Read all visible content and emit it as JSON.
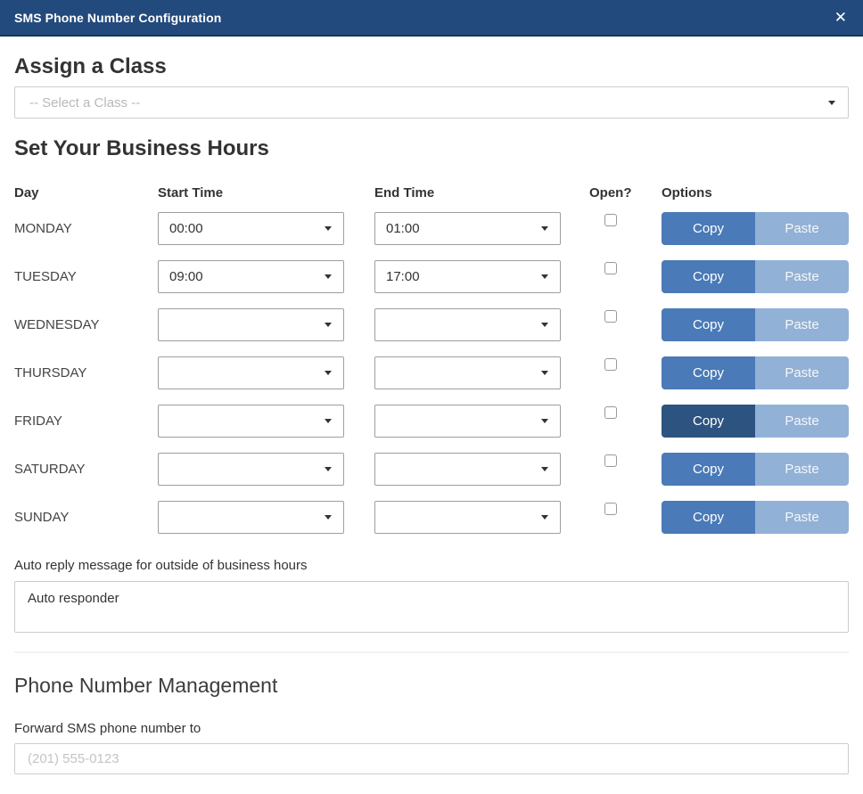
{
  "header": {
    "title": "SMS Phone Number Configuration",
    "close_icon": "✕"
  },
  "assign_class": {
    "heading": "Assign a Class",
    "select_placeholder": "-- Select a Class --"
  },
  "business_hours": {
    "heading": "Set Your Business Hours",
    "columns": {
      "day": "Day",
      "start": "Start Time",
      "end": "End Time",
      "open": "Open?",
      "options": "Options"
    },
    "copy_label": "Copy",
    "paste_label": "Paste",
    "rows": [
      {
        "day": "MONDAY",
        "start": "00:00",
        "end": "01:00",
        "open": false,
        "copy_active": false
      },
      {
        "day": "TUESDAY",
        "start": "09:00",
        "end": "17:00",
        "open": false,
        "copy_active": false
      },
      {
        "day": "WEDNESDAY",
        "start": "",
        "end": "",
        "open": false,
        "copy_active": false
      },
      {
        "day": "THURSDAY",
        "start": "",
        "end": "",
        "open": false,
        "copy_active": false
      },
      {
        "day": "FRIDAY",
        "start": "",
        "end": "",
        "open": false,
        "copy_active": true
      },
      {
        "day": "SATURDAY",
        "start": "",
        "end": "",
        "open": false,
        "copy_active": false
      },
      {
        "day": "SUNDAY",
        "start": "",
        "end": "",
        "open": false,
        "copy_active": false
      }
    ]
  },
  "auto_reply": {
    "label": "Auto reply message for outside of business hours",
    "value": "Auto responder"
  },
  "phone_management": {
    "heading": "Phone Number Management",
    "forward_label": "Forward SMS phone number to",
    "forward_placeholder": "(201) 555-0123"
  },
  "colors": {
    "header_bg": "#234a7c",
    "copy_bg": "#4a7ab7",
    "copy_active_bg": "#2d5380",
    "paste_bg": "#92b1d6"
  }
}
